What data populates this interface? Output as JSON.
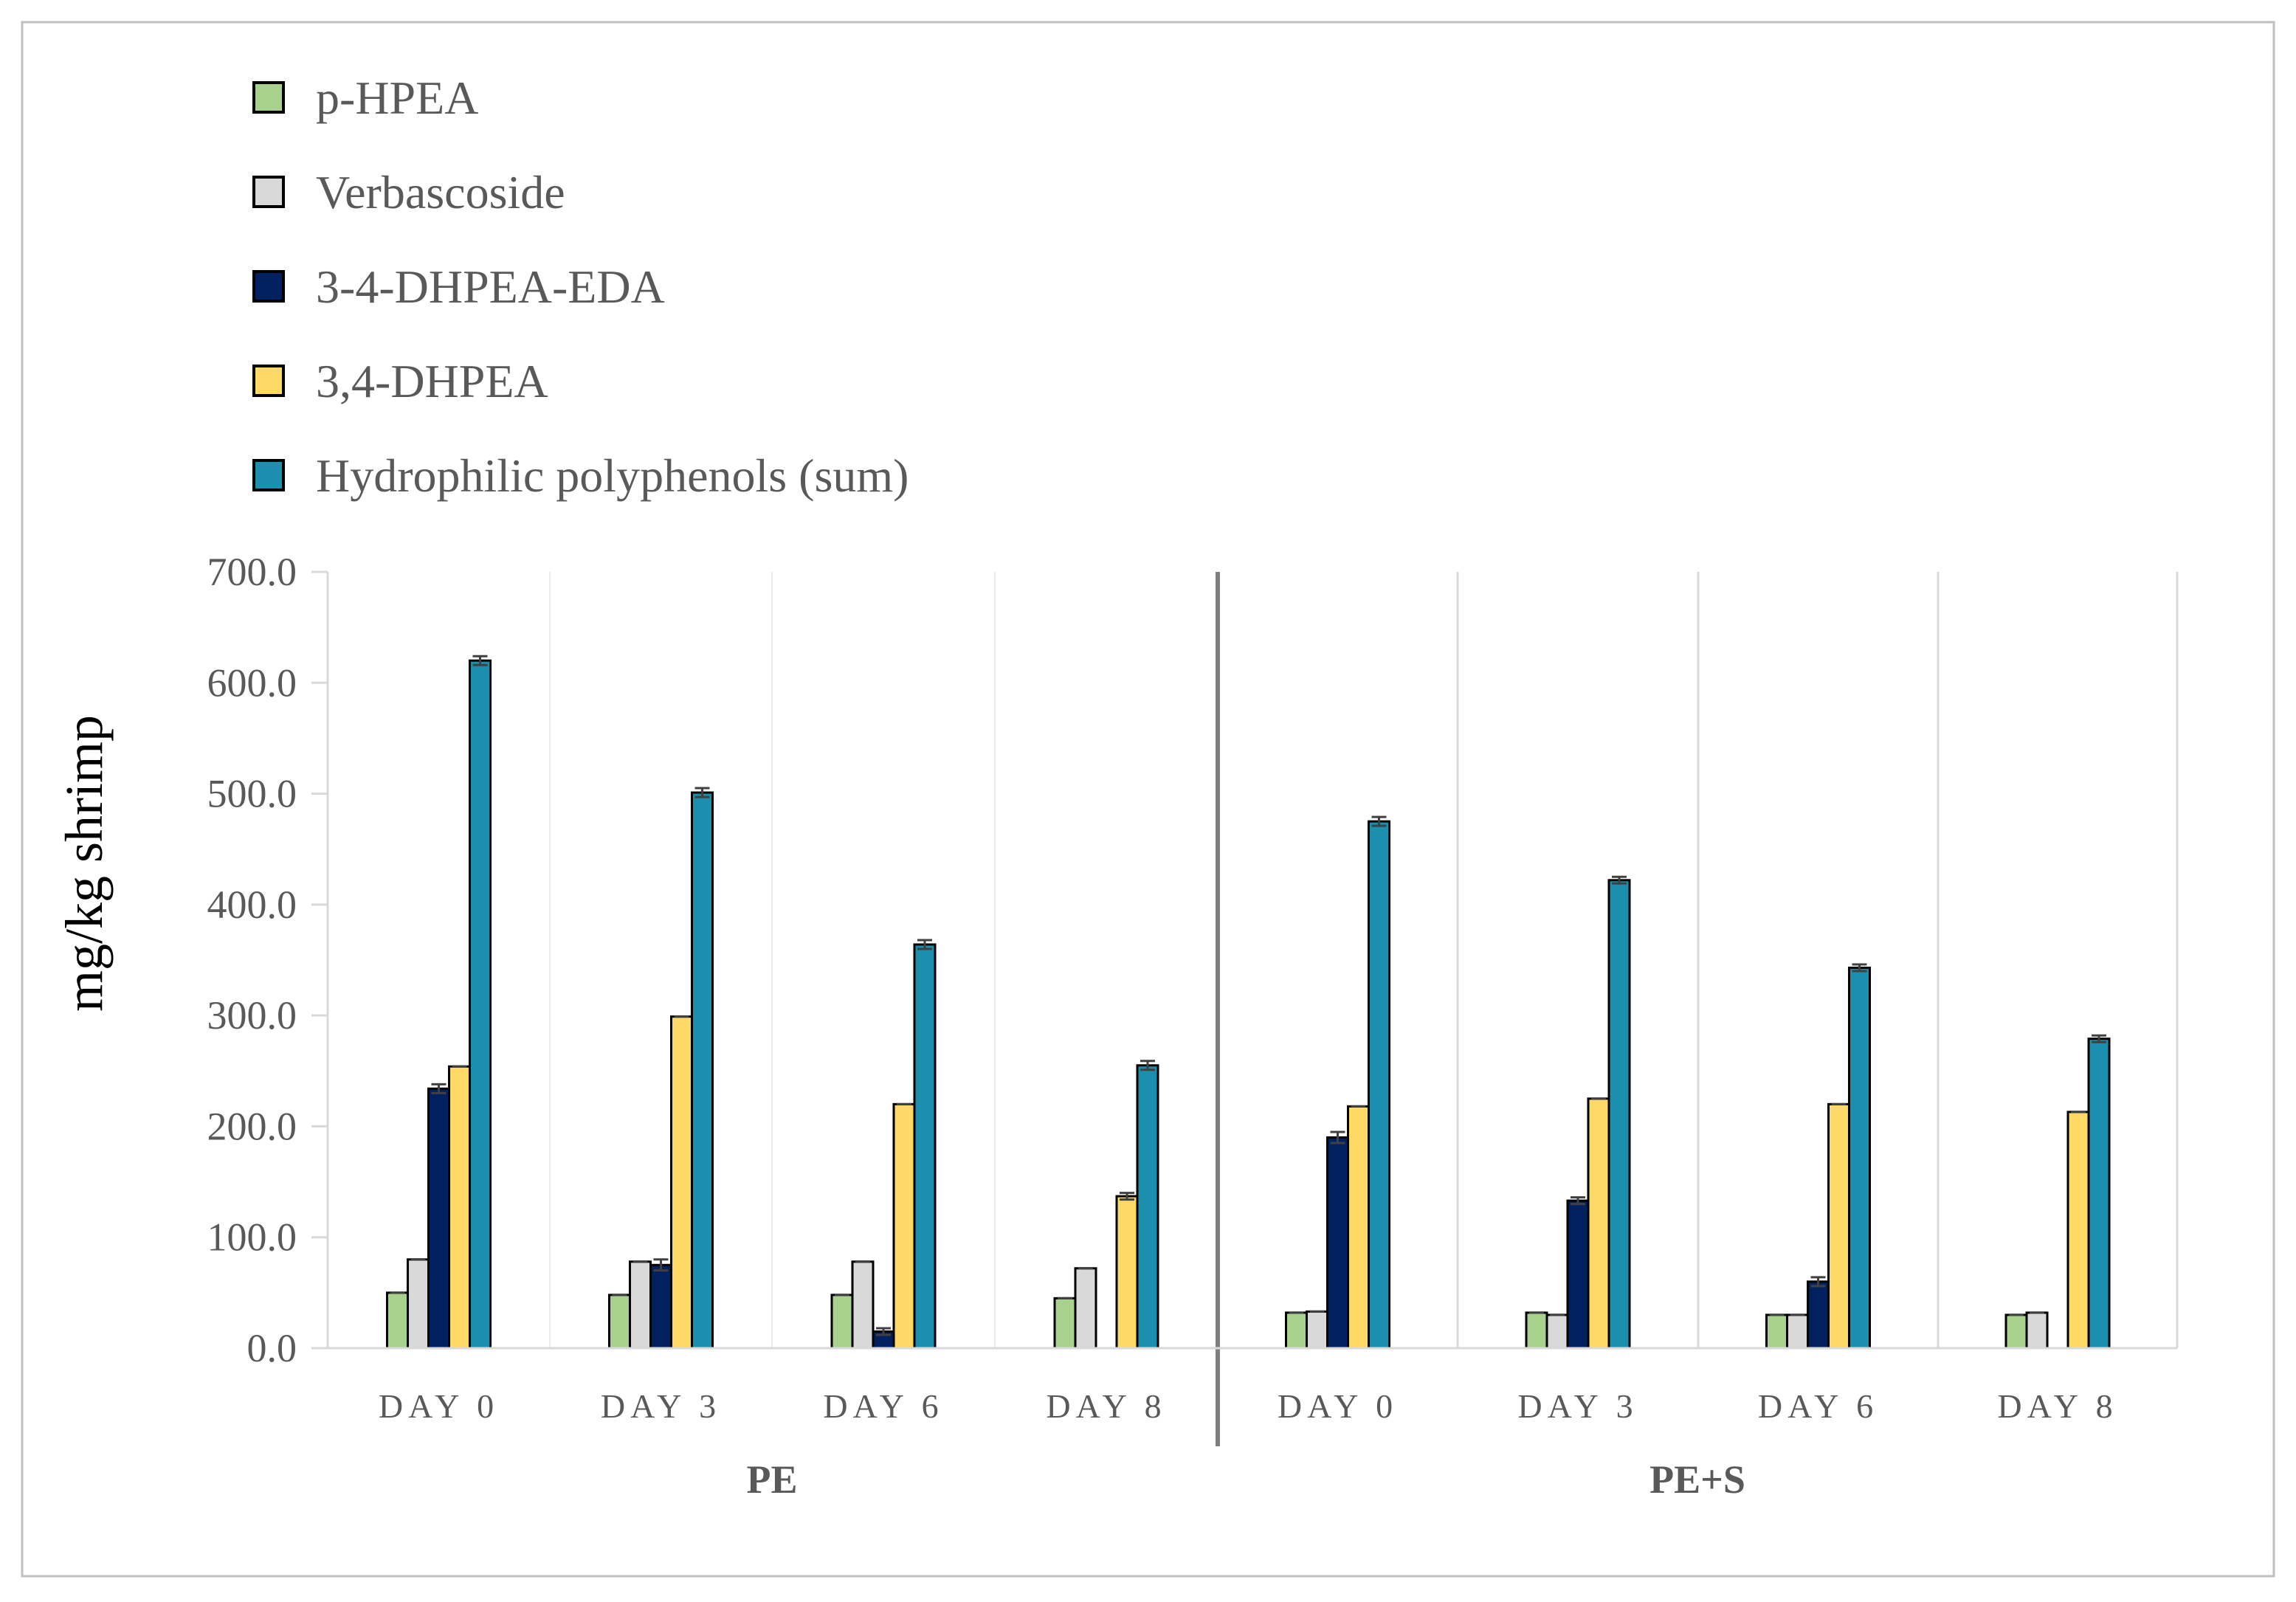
{
  "chart_data": {
    "type": "bar",
    "title": "",
    "xlabel": "",
    "ylabel": "mg/kg shrimp",
    "ylim": [
      0,
      700
    ],
    "yticks": [
      "0.0",
      "100.0",
      "200.0",
      "300.0",
      "400.0",
      "500.0",
      "600.0",
      "700.0"
    ],
    "legend_position": "top-left",
    "groups": [
      "PE",
      "PE+S"
    ],
    "categories": [
      "DAY 0",
      "DAY 3",
      "DAY 6",
      "DAY 8",
      "DAY 0",
      "DAY 3",
      "DAY 6",
      "DAY 8"
    ],
    "category_group": [
      0,
      0,
      0,
      0,
      1,
      1,
      1,
      1
    ],
    "series": [
      {
        "name": "p-HPEA",
        "color": "#a9d18e",
        "values": [
          50,
          48,
          48,
          45,
          32,
          32,
          30,
          30
        ],
        "errors": [
          0,
          0,
          0,
          0,
          0,
          0,
          0,
          0
        ]
      },
      {
        "name": "Verbascoside",
        "color": "#d9d9d9",
        "values": [
          80,
          78,
          78,
          72,
          33,
          30,
          30,
          32
        ],
        "errors": [
          0,
          0,
          0,
          0,
          0,
          0,
          0,
          0
        ]
      },
      {
        "name": "3-4-DHPEA-EDA",
        "color": "#002060",
        "values": [
          234,
          75,
          15,
          0,
          190,
          133,
          60,
          0
        ],
        "errors": [
          4,
          5,
          3,
          0,
          5,
          3,
          4,
          0
        ]
      },
      {
        "name": "3,4-DHPEA",
        "color": "#ffd966",
        "values": [
          254,
          299,
          220,
          137,
          218,
          225,
          220,
          213
        ],
        "errors": [
          0,
          0,
          0,
          3,
          0,
          0,
          0,
          0
        ]
      },
      {
        "name": "Hydrophilic polyphenols (sum)",
        "color": "#1c8fae",
        "values": [
          620,
          501,
          364,
          255,
          475,
          422,
          343,
          279
        ],
        "errors": [
          4,
          4,
          4,
          4,
          4,
          3,
          3,
          3
        ]
      }
    ]
  }
}
